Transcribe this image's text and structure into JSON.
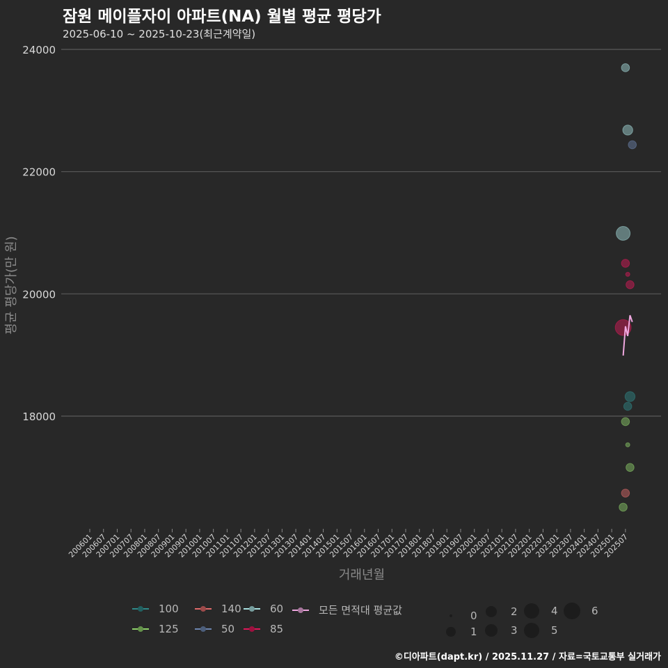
{
  "header": {
    "title": "잠원 메이플자이 아파트(NA) 월별 평균 평당가",
    "subtitle": "2025-06-10 ~ 2025-10-23(최근계약일)"
  },
  "footer": {
    "credit": "©디아파트(dapt.kr) / 2025.11.27 / 자료=국토교통부 실거래가"
  },
  "colors": {
    "background": "#282828",
    "grid": "#5a5a5a",
    "area_100": "#2f8a8a",
    "area_125": "#8fd16a",
    "area_140": "#e06a6a",
    "area_50": "#6d86b0",
    "area_60": "#a8e0e0",
    "area_85": "#e0185a",
    "average": "#f0a8e0"
  },
  "legend": {
    "color_items": [
      {
        "label": "100",
        "color": "#2f8a8a"
      },
      {
        "label": "140",
        "color": "#e06a6a"
      },
      {
        "label": "60",
        "color": "#a8e0e0"
      },
      {
        "label": "모든 면적대 평균값",
        "color": "#f0a8e0"
      },
      {
        "label": "125",
        "color": "#8fd16a"
      },
      {
        "label": "50",
        "color": "#6d86b0"
      },
      {
        "label": "85",
        "color": "#e0185a"
      }
    ],
    "size_items": [
      {
        "label": "0"
      },
      {
        "label": "2"
      },
      {
        "label": "4"
      },
      {
        "label": "6"
      },
      {
        "label": "1"
      },
      {
        "label": "3"
      },
      {
        "label": "5"
      }
    ]
  },
  "chart_data": {
    "type": "scatter",
    "title": "잠원 메이플자이 아파트(NA) 월별 평균 평당가",
    "subtitle": "2025-06-10 ~ 2025-10-23(최근계약일)",
    "xlabel": "거래년월",
    "ylabel": "평균 평당가(만 원)",
    "ylim": [
      16200,
      24000
    ],
    "yticks": [
      18000,
      20000,
      22000,
      24000
    ],
    "xticks": [
      "200601",
      "200607",
      "200701",
      "200707",
      "200801",
      "200807",
      "200901",
      "200907",
      "201001",
      "201007",
      "201101",
      "201107",
      "201201",
      "201207",
      "201301",
      "201307",
      "201401",
      "201407",
      "201501",
      "201507",
      "201601",
      "201607",
      "201701",
      "201707",
      "201801",
      "201807",
      "201901",
      "201907",
      "202001",
      "202007",
      "202101",
      "202107",
      "202201",
      "202207",
      "202301",
      "202307",
      "202401",
      "202407",
      "202501",
      "202507"
    ],
    "grid": true,
    "legend_position": "bottom",
    "series": [
      {
        "name": "60",
        "points": [
          {
            "x": "202507",
            "y": 23700,
            "count": 2
          },
          {
            "x": "202508",
            "y": 22680,
            "count": 3
          },
          {
            "x": "202506",
            "y": 20990,
            "count": 5
          }
        ]
      },
      {
        "name": "50",
        "points": [
          {
            "x": "202510",
            "y": 22440,
            "count": 2
          }
        ]
      },
      {
        "name": "85",
        "points": [
          {
            "x": "202507",
            "y": 20500,
            "count": 2
          },
          {
            "x": "202508",
            "y": 20320,
            "count": 0
          },
          {
            "x": "202509",
            "y": 20150,
            "count": 2
          },
          {
            "x": "202506",
            "y": 19450,
            "count": 6
          }
        ]
      },
      {
        "name": "100",
        "points": [
          {
            "x": "202509",
            "y": 18320,
            "count": 3
          },
          {
            "x": "202508",
            "y": 18160,
            "count": 2
          }
        ]
      },
      {
        "name": "125",
        "points": [
          {
            "x": "202507",
            "y": 17910,
            "count": 2
          },
          {
            "x": "202508",
            "y": 17530,
            "count": 0
          },
          {
            "x": "202509",
            "y": 17160,
            "count": 2
          },
          {
            "x": "202506",
            "y": 16510,
            "count": 2
          }
        ]
      },
      {
        "name": "140",
        "points": [
          {
            "x": "202507",
            "y": 16740,
            "count": 2
          }
        ]
      },
      {
        "name": "모든 면적대 평균값",
        "type": "line",
        "points": [
          {
            "x": "202506",
            "y": 18990
          },
          {
            "x": "202507",
            "y": 19470
          },
          {
            "x": "202508",
            "y": 19310
          },
          {
            "x": "202509",
            "y": 19650
          },
          {
            "x": "202510",
            "y": 19540
          }
        ]
      }
    ]
  }
}
